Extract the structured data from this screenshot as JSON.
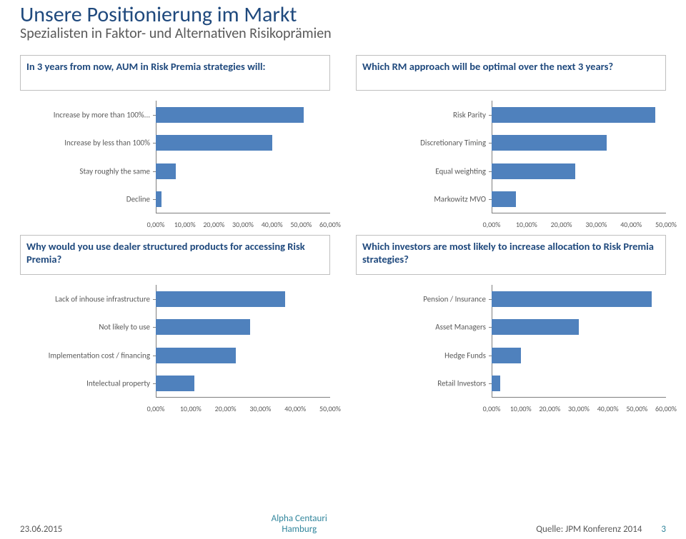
{
  "title": "Unsere Positionierung im Markt",
  "subtitle": "Spezialisten in Faktor- und Alternativen Risikoprämien",
  "colors": {
    "bar": "#4f81bd",
    "title": "#1f497d",
    "body": "#595959"
  },
  "footer": {
    "date": "23.06.2015",
    "center1": "Alpha Centauri",
    "center2": "Hamburg",
    "source": "Quelle: JPM Konferenz 2014",
    "page": "3"
  },
  "charts": [
    {
      "question": "In 3 years from now, AUM in Risk Premia strategies will:",
      "xmax": 60,
      "xstep": 10,
      "xfmt": "pct60",
      "rows": [
        {
          "label": "Increase by more than 100%...",
          "value": 51
        },
        {
          "label": "Increase by less than 100%",
          "value": 40
        },
        {
          "label": "Stay roughly the same",
          "value": 7
        },
        {
          "label": "Decline",
          "value": 2
        }
      ]
    },
    {
      "question": "Which RM approach will be optimal over the next 3 years?",
      "xmax": 50,
      "xstep": 10,
      "xfmt": "pct50",
      "rows": [
        {
          "label": "Risk Parity",
          "value": 47
        },
        {
          "label": "Discretionary Timing",
          "value": 33
        },
        {
          "label": "Equal weighting",
          "value": 24
        },
        {
          "label": "Markowitz MVO",
          "value": 7
        }
      ]
    },
    {
      "question": "Why would you use dealer structured products for accessing Risk Premia?",
      "xmax": 50,
      "xstep": 10,
      "xfmt": "pct50",
      "rows": [
        {
          "label": "Lack of inhouse infrastructure",
          "value": 37
        },
        {
          "label": "Not likely to use",
          "value": 27
        },
        {
          "label": "Implementation cost / financing",
          "value": 23
        },
        {
          "label": "Intelectual property",
          "value": 11
        }
      ]
    },
    {
      "question": "Which investors are most likely to increase allocation to Risk Premia strategies?",
      "xmax": 60,
      "xstep": 10,
      "xfmt": "pct60",
      "rows": [
        {
          "label": "Pension   /   Insurance",
          "value": 55
        },
        {
          "label": "Asset Managers",
          "value": 30
        },
        {
          "label": "Hedge Funds",
          "value": 10
        },
        {
          "label": "Retail Investors",
          "value": 3
        }
      ]
    }
  ]
}
